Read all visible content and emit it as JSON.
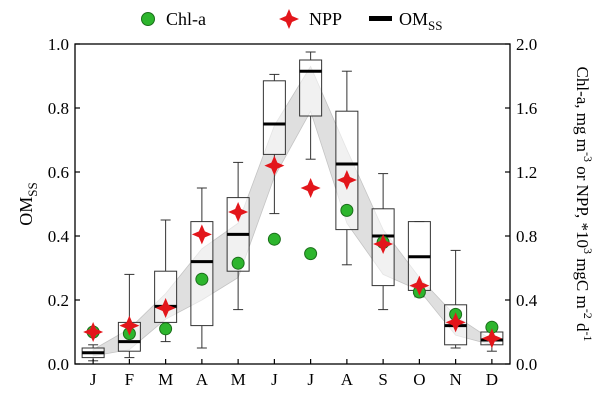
{
  "chart_data": {
    "type": "box",
    "categories": [
      "J",
      "F",
      "M",
      "A",
      "M",
      "J",
      "J",
      "A",
      "S",
      "O",
      "N",
      "D"
    ],
    "legend": {
      "placement": "top-center",
      "items": [
        {
          "label": "Chl-a",
          "marker": "circle",
          "color": "#2db52d"
        },
        {
          "label": "NPP",
          "marker": "star",
          "color": "#e3161b"
        },
        {
          "label": "OM",
          "label_sub": "SS",
          "marker": "line",
          "color": "#000000"
        }
      ]
    },
    "left_axis": {
      "label": "OM",
      "label_sub": "SS",
      "ylim": [
        0.0,
        1.0
      ],
      "ticks": [
        "0.0",
        "0.2",
        "0.4",
        "0.6",
        "0.8",
        "1.0"
      ],
      "tick_values": [
        0.0,
        0.2,
        0.4,
        0.6,
        0.8,
        1.0
      ]
    },
    "right_axis": {
      "label_parts": [
        "Chl-a, mg m",
        "-3",
        " or NPP, *10",
        "3",
        " mgC m",
        "-2",
        " d",
        "-1"
      ],
      "ylim": [
        0.0,
        2.0
      ],
      "ticks": [
        "0.0",
        "0.4",
        "0.8",
        "1.2",
        "1.6",
        "2.0"
      ],
      "tick_values": [
        0.0,
        0.4,
        0.8,
        1.2,
        1.6,
        2.0
      ]
    },
    "series": [
      {
        "name": "OM_SS",
        "type": "box",
        "axis": "left",
        "boxes": [
          {
            "min": 0.01,
            "q1": 0.02,
            "median": 0.035,
            "q3": 0.05,
            "max": 0.06
          },
          {
            "min": 0.02,
            "q1": 0.04,
            "median": 0.07,
            "q3": 0.13,
            "max": 0.28
          },
          {
            "min": 0.07,
            "q1": 0.13,
            "median": 0.18,
            "q3": 0.29,
            "max": 0.45
          },
          {
            "min": 0.05,
            "q1": 0.12,
            "median": 0.32,
            "q3": 0.445,
            "max": 0.55
          },
          {
            "min": 0.17,
            "q1": 0.29,
            "median": 0.405,
            "q3": 0.52,
            "max": 0.63
          },
          {
            "min": 0.47,
            "q1": 0.655,
            "median": 0.75,
            "q3": 0.885,
            "max": 0.905
          },
          {
            "min": 0.64,
            "q1": 0.775,
            "median": 0.915,
            "q3": 0.95,
            "max": 0.975
          },
          {
            "min": 0.31,
            "q1": 0.42,
            "median": 0.625,
            "q3": 0.79,
            "max": 0.915
          },
          {
            "min": 0.17,
            "q1": 0.245,
            "median": 0.4,
            "q3": 0.485,
            "max": 0.595
          },
          {
            "min": 0.21,
            "q1": 0.23,
            "median": 0.335,
            "q3": 0.445,
            "max": 0.445
          },
          {
            "min": 0.05,
            "q1": 0.06,
            "median": 0.12,
            "q3": 0.185,
            "max": 0.355
          },
          {
            "min": 0.04,
            "q1": 0.06,
            "median": 0.075,
            "q3": 0.1,
            "max": 0.105
          }
        ],
        "band": {
          "low": [
            0.025,
            0.045,
            0.14,
            0.2,
            0.27,
            0.585,
            0.79,
            0.44,
            0.28,
            0.23,
            0.09,
            0.06
          ],
          "high": [
            0.045,
            0.11,
            0.22,
            0.36,
            0.44,
            0.745,
            0.93,
            0.67,
            0.42,
            0.27,
            0.15,
            0.075
          ]
        },
        "color": "#000000"
      },
      {
        "name": "Chl-a",
        "type": "scatter",
        "axis": "right",
        "marker": "circle",
        "color": "#2db52d",
        "values": [
          0.2,
          0.19,
          0.22,
          0.53,
          0.63,
          0.78,
          0.69,
          0.96,
          0.76,
          0.45,
          0.31,
          0.23
        ]
      },
      {
        "name": "NPP",
        "type": "scatter",
        "axis": "right",
        "marker": "star",
        "color": "#e3161b",
        "values": [
          0.2,
          0.24,
          0.35,
          0.81,
          0.95,
          1.24,
          1.1,
          1.15,
          0.75,
          0.49,
          0.26,
          0.16
        ]
      }
    ],
    "grid": false
  }
}
